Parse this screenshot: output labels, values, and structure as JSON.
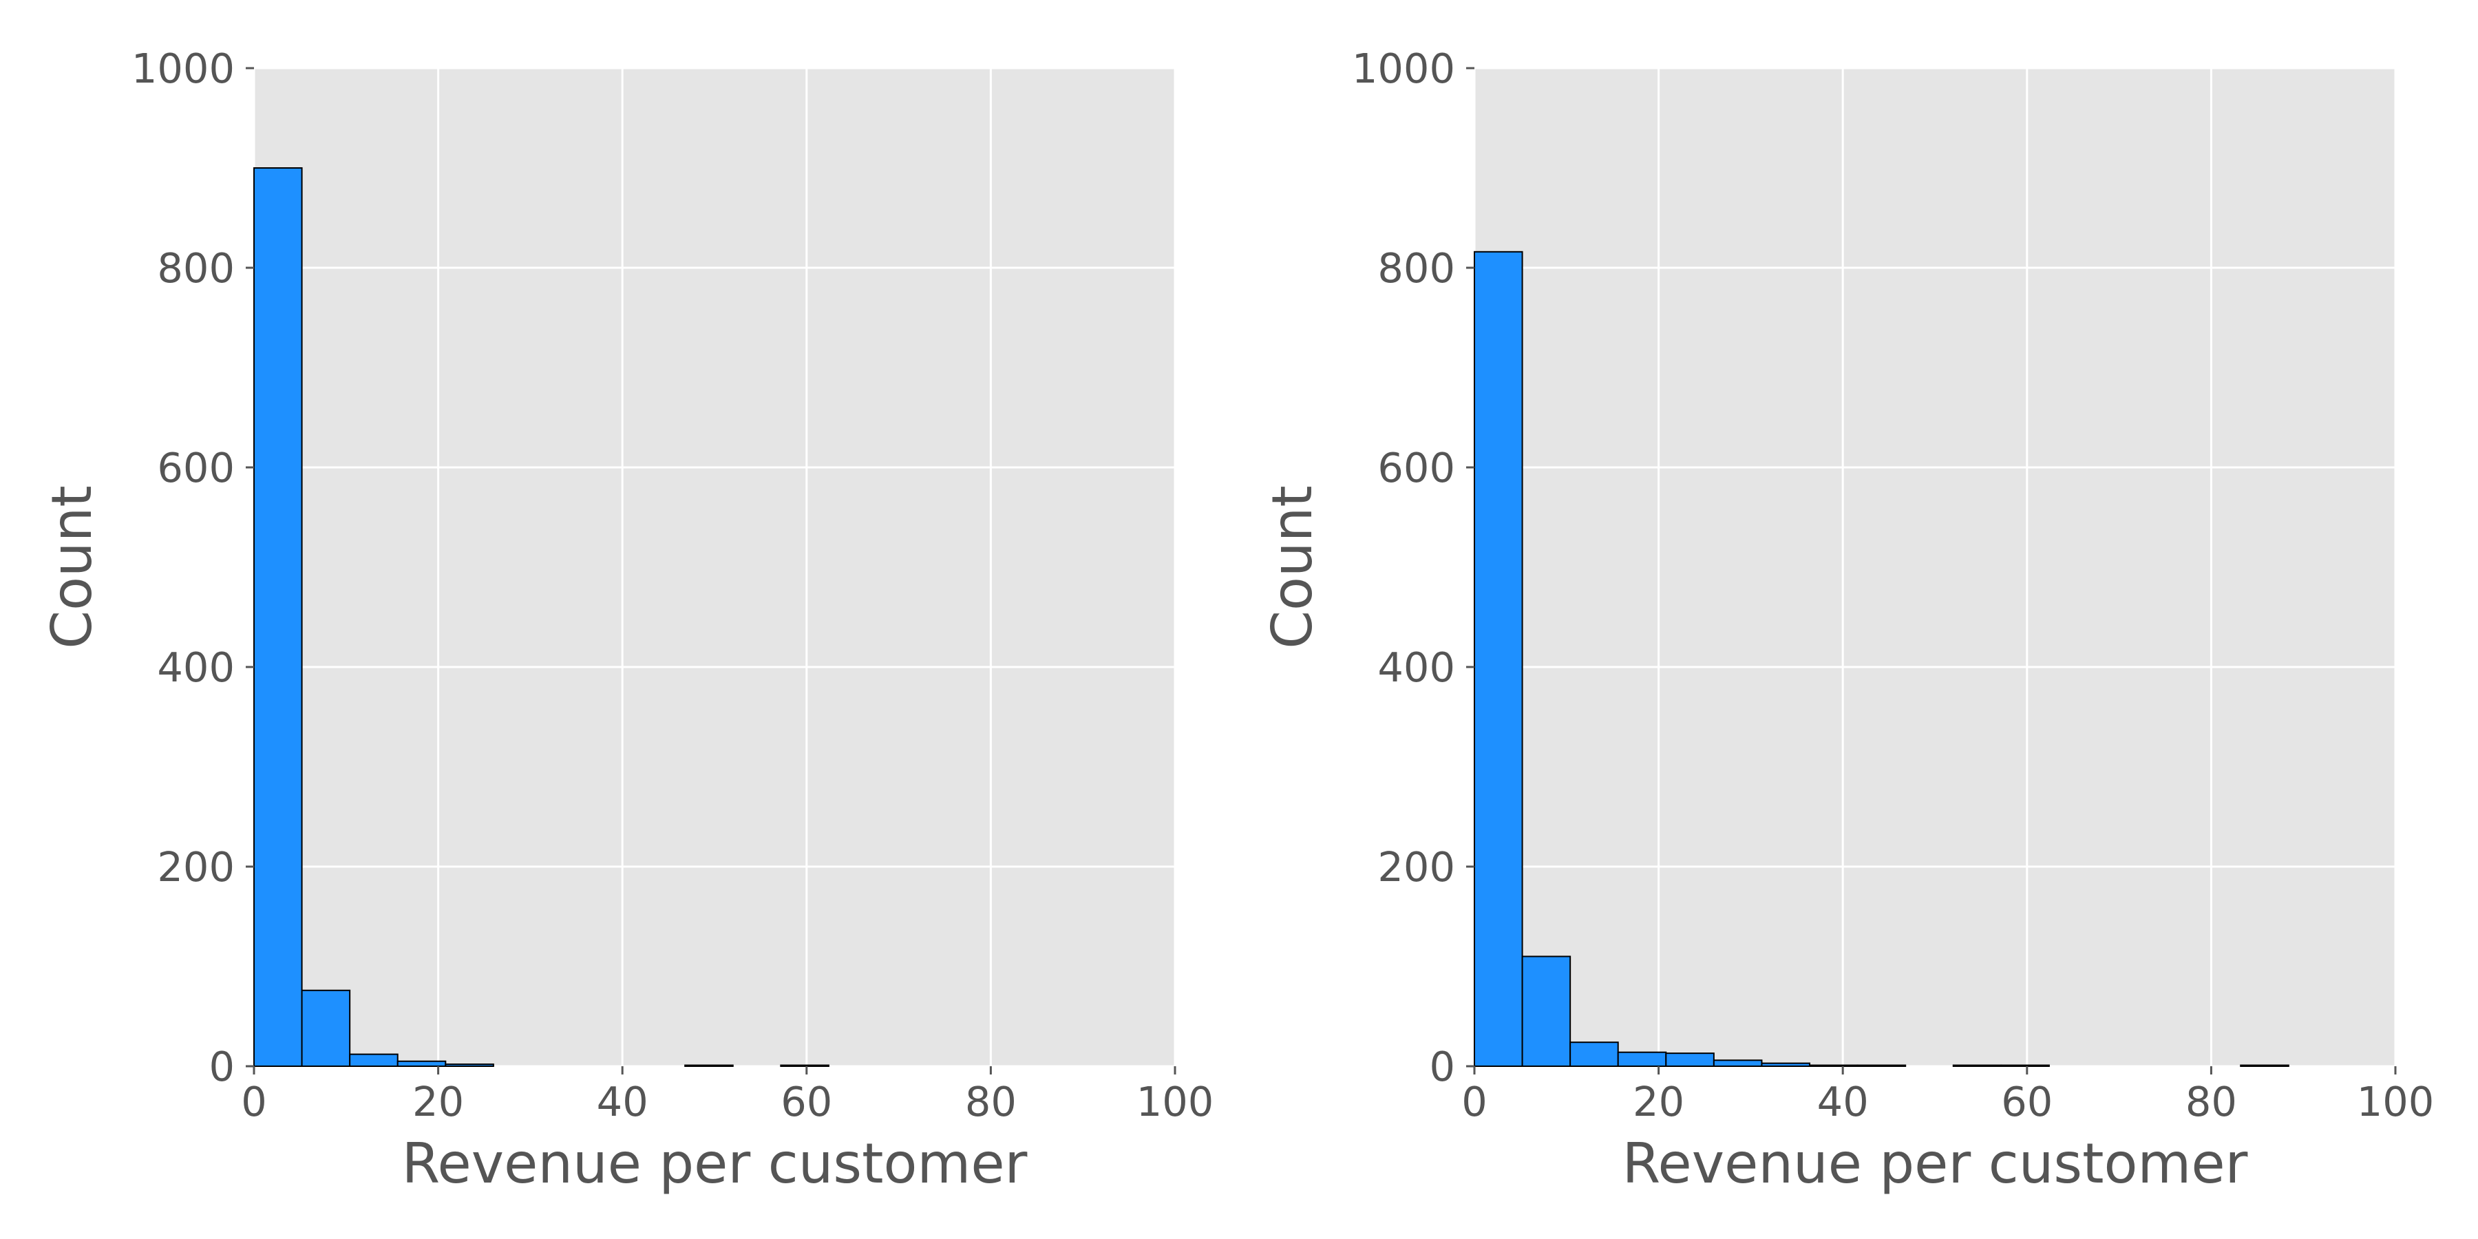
{
  "chart_data": [
    {
      "type": "bar",
      "xlabel": "Revenue per customer",
      "ylabel": "Count",
      "xlim": [
        0,
        100
      ],
      "ylim": [
        0,
        1000
      ],
      "xticks": [
        "0",
        "20",
        "40",
        "60",
        "80",
        "100"
      ],
      "yticks": [
        "0",
        "200",
        "400",
        "600",
        "800",
        "1000"
      ],
      "grid": true,
      "bin_edges": [
        0.0,
        5.2,
        10.4,
        15.6,
        20.8,
        26.0,
        31.2,
        36.4,
        41.6,
        46.8,
        52.0,
        57.2,
        62.4
      ],
      "values": [
        900,
        76,
        12,
        5,
        2,
        0,
        0,
        0,
        0,
        1,
        0,
        1
      ]
    },
    {
      "type": "bar",
      "xlabel": "Revenue per customer",
      "ylabel": "Count",
      "xlim": [
        0,
        100
      ],
      "ylim": [
        0,
        1000
      ],
      "xticks": [
        "0",
        "20",
        "40",
        "60",
        "80",
        "100"
      ],
      "yticks": [
        "0",
        "200",
        "400",
        "600",
        "800",
        "1000"
      ],
      "grid": true,
      "bin_edges": [
        0.0,
        5.2,
        10.4,
        15.6,
        20.8,
        26.0,
        31.2,
        36.4,
        41.6,
        46.8,
        52.0,
        57.2,
        62.4,
        67.6,
        72.8,
        78.0,
        83.2,
        88.4
      ],
      "values": [
        816,
        110,
        24,
        14,
        13,
        6,
        3,
        1,
        1,
        0,
        1,
        1,
        0,
        0,
        0,
        0,
        1
      ]
    }
  ],
  "style": {
    "bar_color": "#1e90ff",
    "bar_edge": "#000000",
    "plot_bg": "#e5e5e5",
    "grid_color": "#ffffff",
    "text_color": "#555555"
  }
}
